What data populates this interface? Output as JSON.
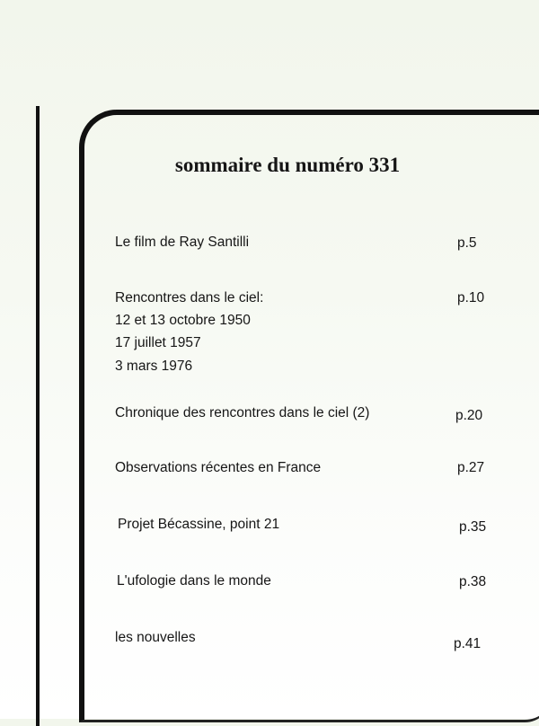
{
  "title": "sommaire du numéro 331",
  "entries": [
    {
      "title": "Le film de Ray Santilli",
      "page": "p.5"
    },
    {
      "title": "Rencontres dans le ciel:",
      "sublines": [
        "12 et 13 octobre 1950",
        "17 juillet 1957",
        "3 mars 1976"
      ],
      "page": "p.10"
    },
    {
      "title": "Chronique des rencontres dans le ciel (2)",
      "page": "p.20"
    },
    {
      "title": "Observations récentes en France",
      "page": "p.27"
    },
    {
      "title": "Projet Bécassine, point 21",
      "page": "p.35"
    },
    {
      "title": "L'ufologie dans le monde",
      "page": "p.38"
    },
    {
      "title": "les nouvelles",
      "page": "p.41"
    }
  ]
}
